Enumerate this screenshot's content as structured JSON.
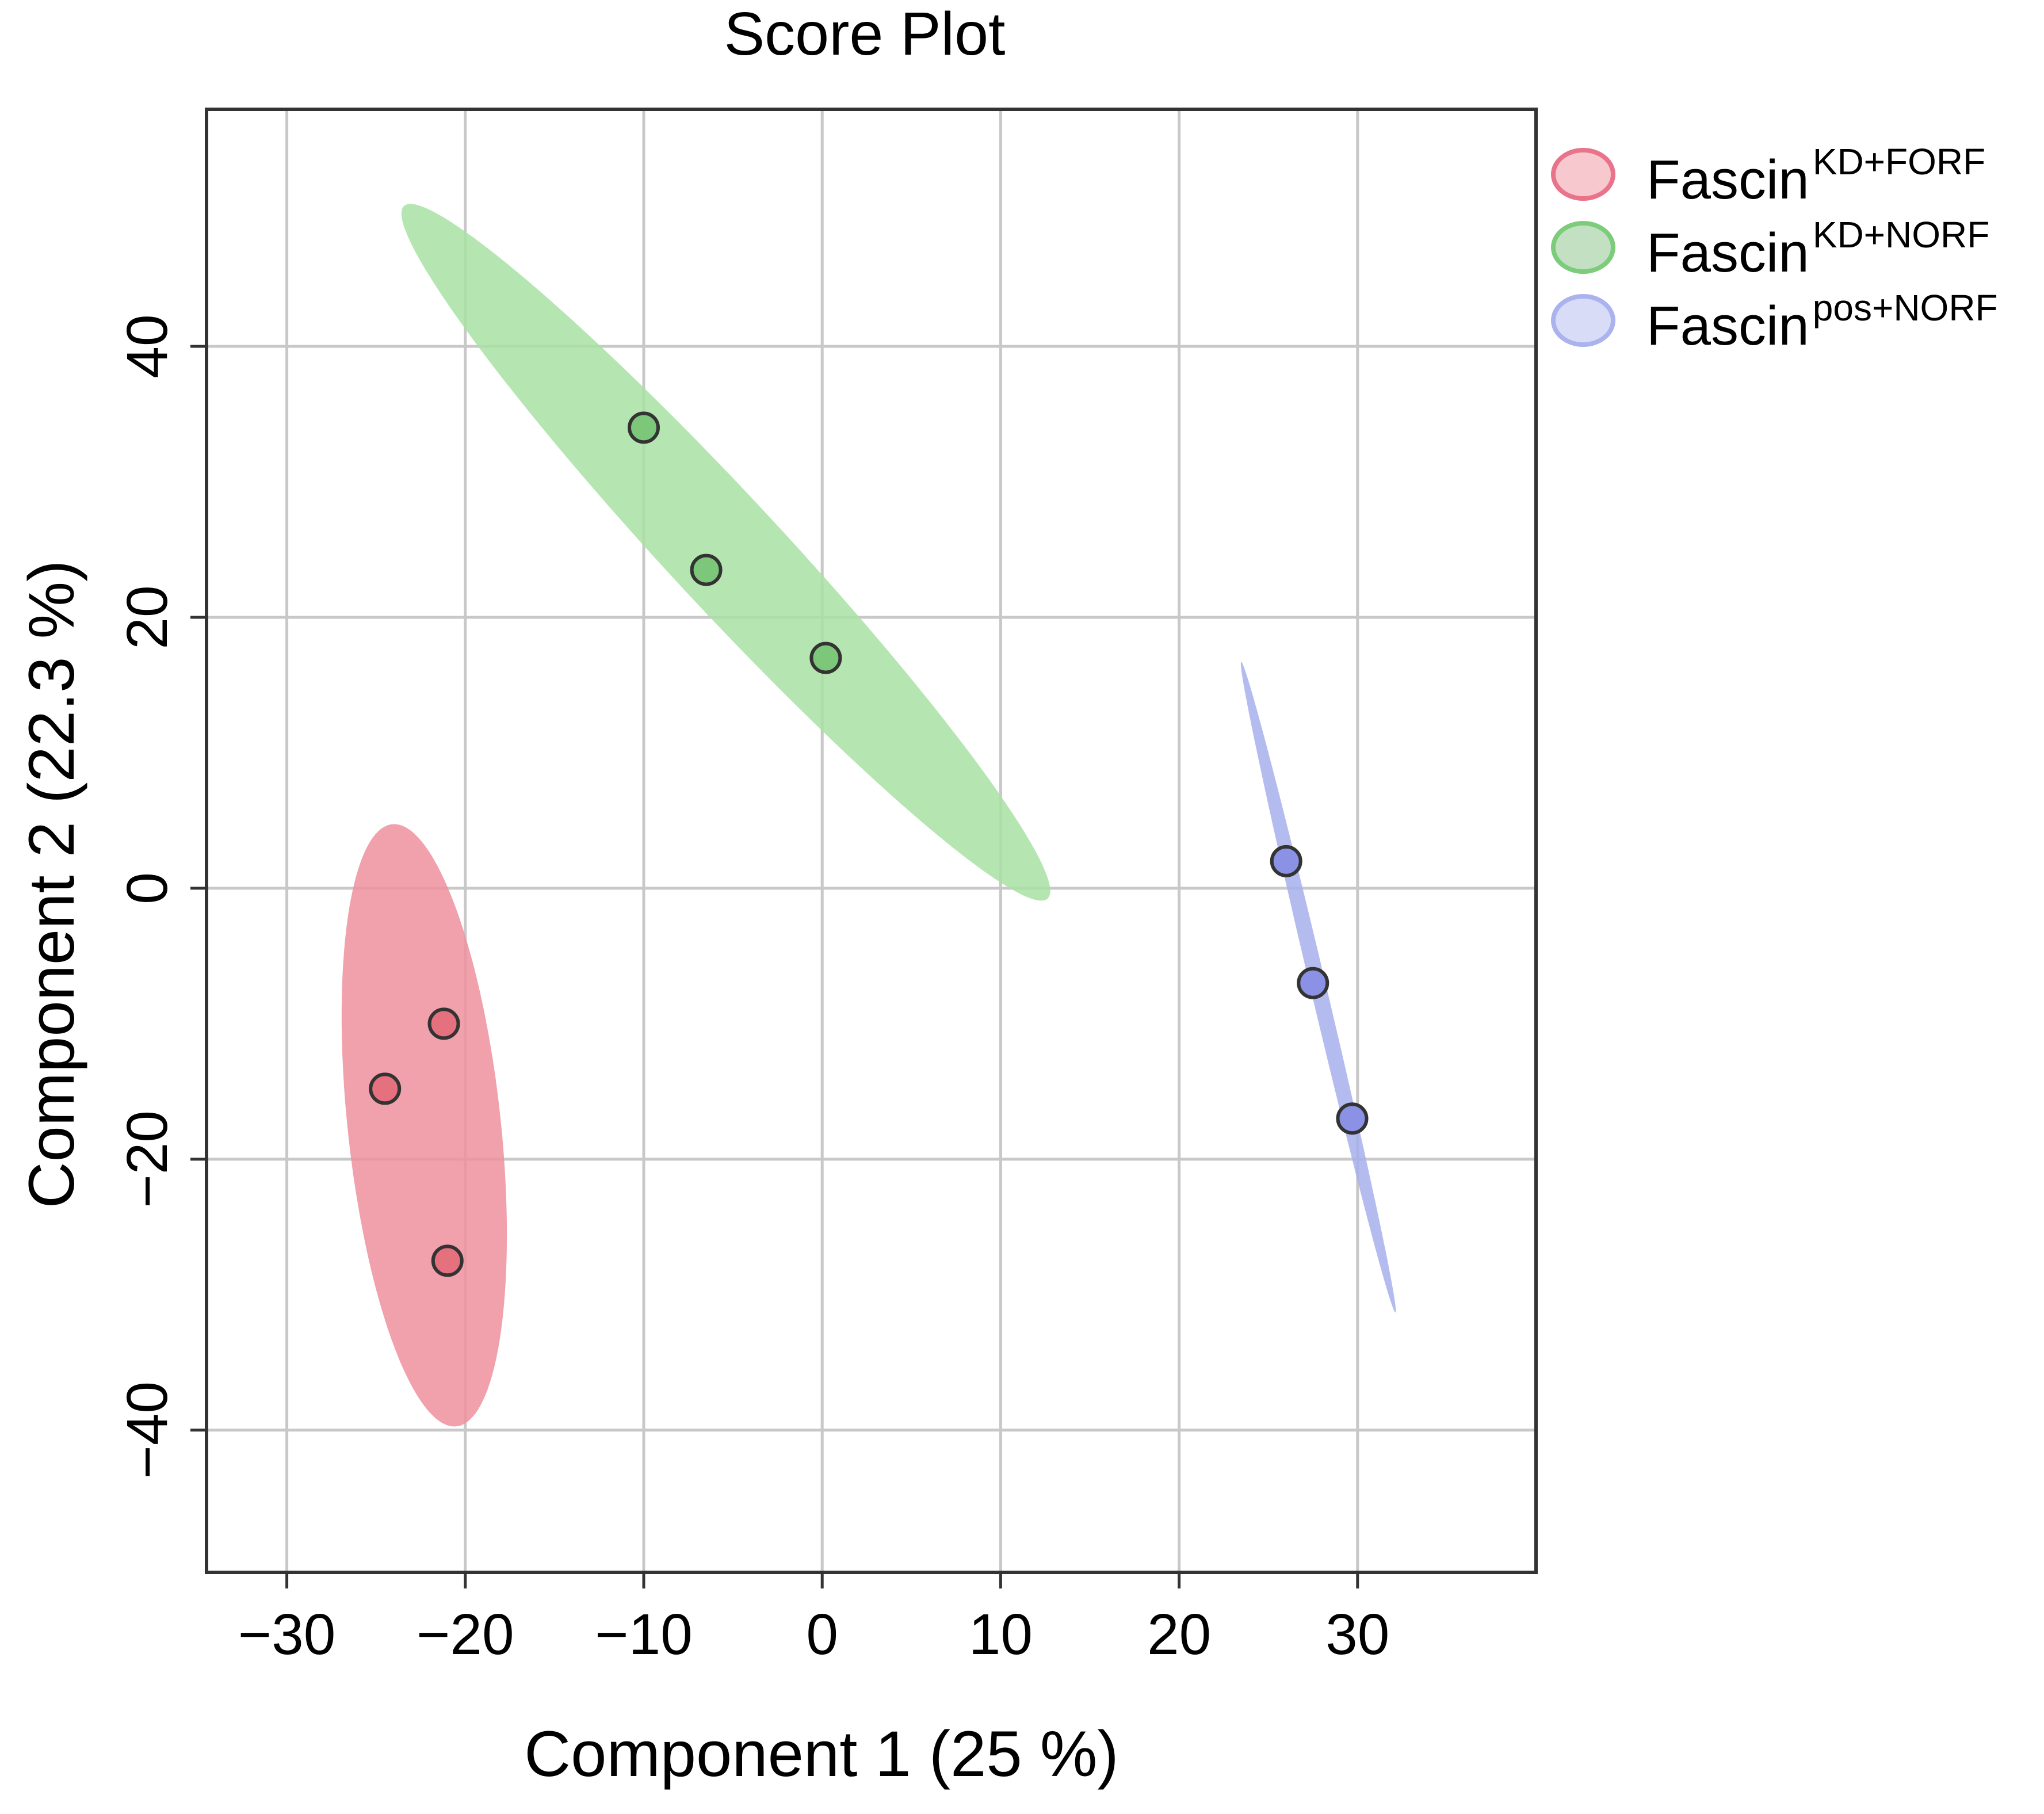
{
  "chart_data": {
    "type": "scatter",
    "title": "Score Plot",
    "xlabel": "Component 1 (25 %)",
    "ylabel": "Component 2 (22.3 %)",
    "xlim": [
      -34.5,
      40
    ],
    "ylim": [
      -50.5,
      57.5
    ],
    "xticks": [
      -30,
      -20,
      -10,
      0,
      10,
      20,
      30
    ],
    "yticks": [
      -40,
      -20,
      0,
      20,
      40
    ],
    "xtick_labels": [
      "−30",
      "−20",
      "−10",
      "0",
      "10",
      "20",
      "30"
    ],
    "ytick_labels": [
      "−40",
      "−20",
      "0",
      "20",
      "40"
    ],
    "grid": true,
    "legend_position": "top-right, outside plot",
    "series": [
      {
        "name_base": "Fascin",
        "name_sup": "KD+FORF",
        "point_color": "#e5707e",
        "fill_color": "#ed919c",
        "legend_fill": "#f8c8cf",
        "legend_stroke": "#e8738a",
        "points": [
          [
            -24.5,
            -14.8
          ],
          [
            -21.2,
            -10.0
          ],
          [
            -21.0,
            -27.5
          ]
        ],
        "ellipse": {
          "center": [
            -22.3,
            -17.5
          ],
          "semi_major": 22.3,
          "semi_minor": 4.3,
          "angle_deg": 94.5
        }
      },
      {
        "name_base": "Fascin",
        "name_sup": "KD+NORF",
        "point_color": "#7dc77b",
        "fill_color": "#a8e2a5",
        "legend_fill": "#c3e0c3",
        "legend_stroke": "#7ccc7c",
        "points": [
          [
            -10.0,
            34.0
          ],
          [
            -6.5,
            23.5
          ],
          [
            0.2,
            17.0
          ]
        ],
        "ellipse": {
          "center": [
            -5.4,
            24.8
          ],
          "semi_major": 31.3,
          "semi_minor": 3.5,
          "angle_deg": -55
        }
      },
      {
        "name_base": "Fascin",
        "name_sup": "pos+NORF",
        "point_color": "#8b92e6",
        "fill_color": "#a7b0ec",
        "legend_fill": "#d9dcf7",
        "legend_stroke": "#aab3ee",
        "points": [
          [
            26.0,
            2.0
          ],
          [
            27.5,
            -7.0
          ],
          [
            29.7,
            -17.0
          ]
        ],
        "ellipse": {
          "center": [
            27.8,
            -7.3
          ],
          "semi_major": 24.4,
          "semi_minor": 0.45,
          "angle_deg": -79.8
        }
      }
    ]
  }
}
